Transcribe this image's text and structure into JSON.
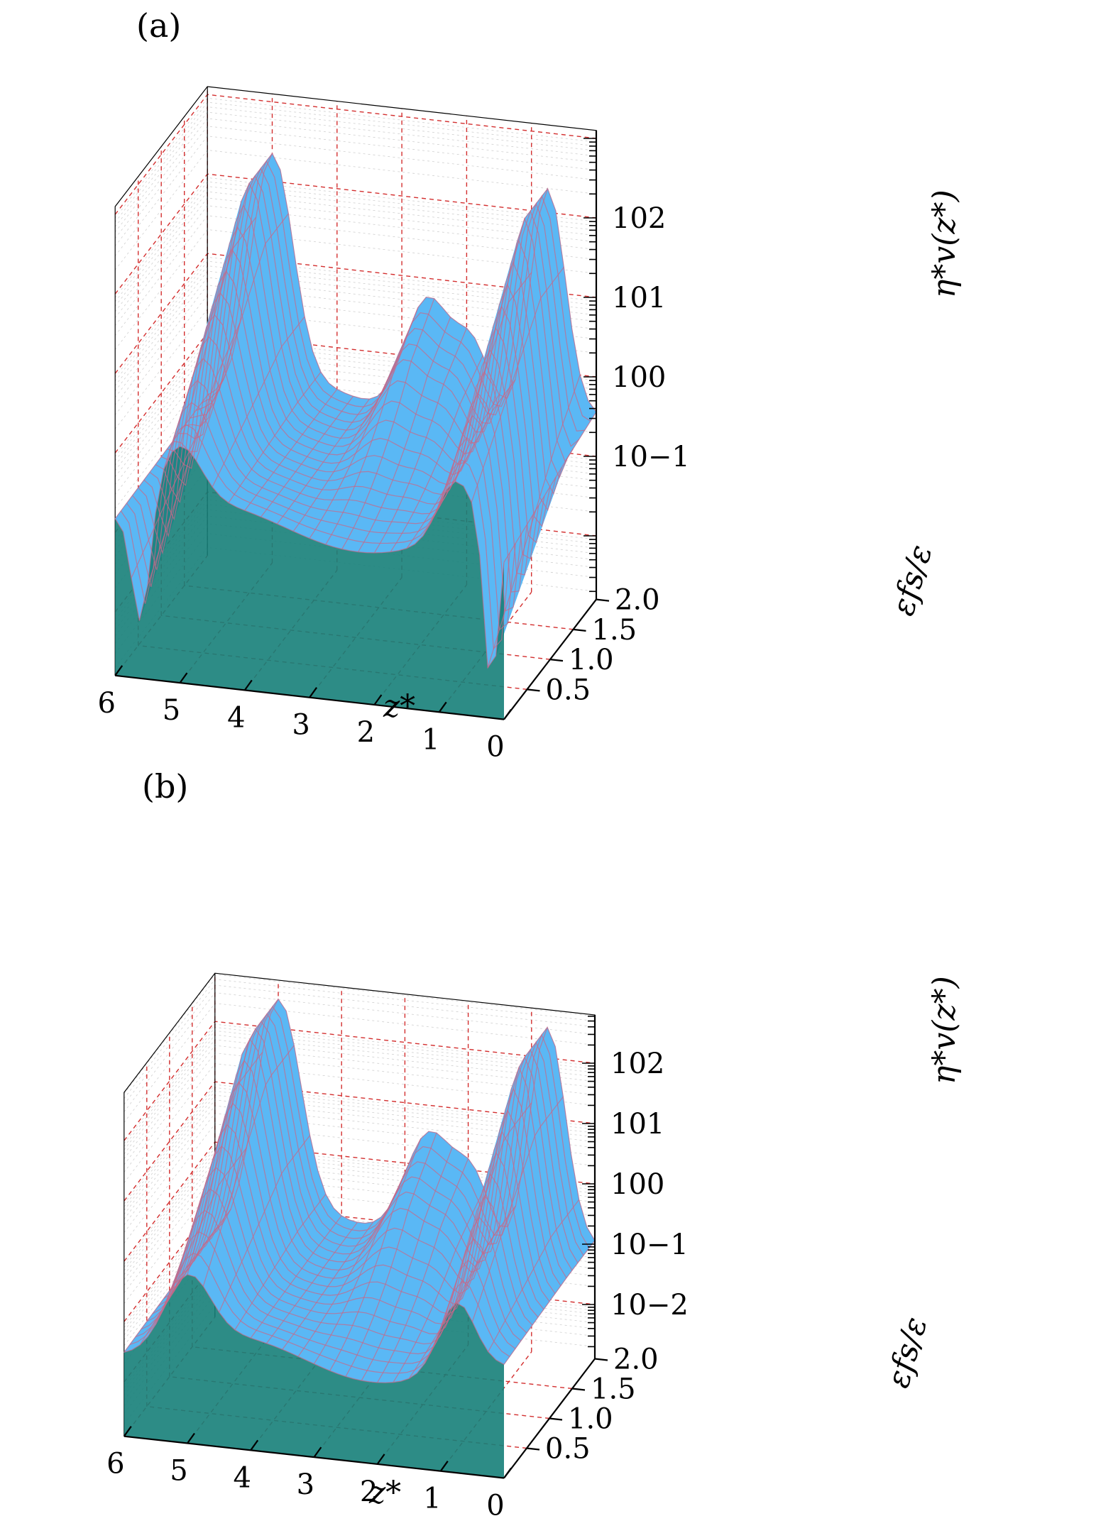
{
  "colors": {
    "surface_top": "#5ab8f5",
    "surface_side": "#167f79",
    "mesh_line": "#c56a8a",
    "major_grid": "#d32f2f",
    "axis": "#000000"
  },
  "chart_data": [
    {
      "panel_label": "(a)",
      "type": "surface3d",
      "xlabel": "z*",
      "ylabel": "εfs/ε",
      "zlabel": "η*v(z*)",
      "x_ticks": [
        "6",
        "5",
        "4",
        "3",
        "2",
        "1",
        "0"
      ],
      "y_ticks": [
        "0.5",
        "1.0",
        "1.5",
        "2.0"
      ],
      "z_ticks": [
        "10−1",
        "100",
        "101",
        "102"
      ],
      "xlim": [
        0,
        6
      ],
      "ylim": [
        0,
        2.0
      ],
      "z_scale": "log",
      "grid": true
    },
    {
      "panel_label": "(b)",
      "type": "surface3d",
      "xlabel": "z*",
      "ylabel": "εfs/ε",
      "zlabel": "η*v(z*)",
      "x_ticks": [
        "6",
        "5",
        "4",
        "3",
        "2",
        "1",
        "0"
      ],
      "y_ticks": [
        "0.5",
        "1.0",
        "1.5",
        "2.0"
      ],
      "z_ticks": [
        "10−2",
        "10−1",
        "100",
        "101",
        "102"
      ],
      "xlim": [
        0,
        6
      ],
      "ylim": [
        0,
        2.0
      ],
      "z_scale": "log",
      "grid": true
    }
  ]
}
